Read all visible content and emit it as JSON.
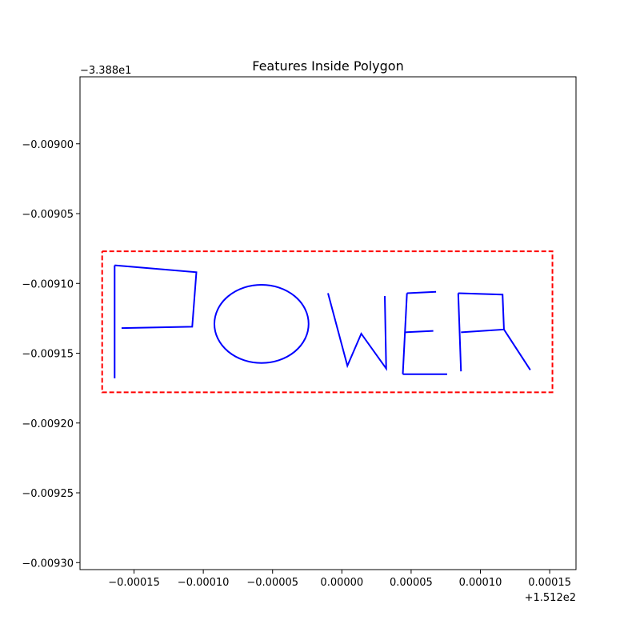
{
  "chart_data": {
    "type": "line",
    "title": "Features Inside Polygon",
    "xlabel": "",
    "ylabel": "",
    "x_offset_label": "+1.512e2",
    "y_offset_label": "−3.388e1",
    "xlim": [
      -0.000189,
      0.000169
    ],
    "ylim": [
      -0.009305,
      -0.008952
    ],
    "x_ticks": [
      {
        "value": -0.00015,
        "label": "−0.00015"
      },
      {
        "value": -0.0001,
        "label": "−0.00010"
      },
      {
        "value": -5e-05,
        "label": "−0.00005"
      },
      {
        "value": 0.0,
        "label": "0.00000"
      },
      {
        "value": 5e-05,
        "label": "0.00005"
      },
      {
        "value": 0.0001,
        "label": "0.00010"
      },
      {
        "value": 0.00015,
        "label": "0.00015"
      }
    ],
    "y_ticks": [
      {
        "value": -0.009,
        "label": "−0.00900"
      },
      {
        "value": -0.00905,
        "label": "−0.00905"
      },
      {
        "value": -0.0091,
        "label": "−0.00910"
      },
      {
        "value": -0.00915,
        "label": "−0.00915"
      },
      {
        "value": -0.0092,
        "label": "−0.00920"
      },
      {
        "value": -0.00925,
        "label": "−0.00925"
      },
      {
        "value": -0.0093,
        "label": "−0.00930"
      }
    ],
    "grid": false,
    "polygon": {
      "name": "boundary",
      "color": "#ff0000",
      "style": "dashed",
      "points": [
        [
          -0.000173,
          -0.009077
        ],
        [
          0.000152,
          -0.009077
        ],
        [
          0.000152,
          -0.009178
        ],
        [
          -0.000173,
          -0.009178
        ],
        [
          -0.000173,
          -0.009077
        ]
      ]
    },
    "feature_color": "#0000ff",
    "features": [
      {
        "name": "P-stem",
        "points": [
          [
            -0.000164,
            -0.009168
          ],
          [
            -0.000164,
            -0.009087
          ]
        ]
      },
      {
        "name": "P-bowl",
        "points": [
          [
            -0.000164,
            -0.009087
          ],
          [
            -0.000105,
            -0.009092
          ],
          [
            -0.000108,
            -0.009131
          ],
          [
            -0.000159,
            -0.009132
          ]
        ]
      },
      {
        "name": "O-circle",
        "type": "circle",
        "center": [
          -5.8e-05,
          -0.009129
        ],
        "radius_x": 3.4e-05,
        "radius_y": 2.8e-05
      },
      {
        "name": "W",
        "points": [
          [
            -1e-05,
            -0.009107
          ],
          [
            4e-06,
            -0.009159
          ],
          [
            1.4e-05,
            -0.009136
          ],
          [
            3.2e-05,
            -0.009161
          ],
          [
            3.1e-05,
            -0.009109
          ]
        ]
      },
      {
        "name": "E-spine",
        "points": [
          [
            4.7e-05,
            -0.009107
          ],
          [
            4.4e-05,
            -0.009165
          ]
        ]
      },
      {
        "name": "E-top",
        "points": [
          [
            4.7e-05,
            -0.009107
          ],
          [
            6.8e-05,
            -0.009106
          ]
        ]
      },
      {
        "name": "E-middle",
        "points": [
          [
            4.6e-05,
            -0.009135
          ],
          [
            6.6e-05,
            -0.009134
          ]
        ]
      },
      {
        "name": "E-bottom",
        "points": [
          [
            4.4e-05,
            -0.009165
          ],
          [
            7.6e-05,
            -0.009165
          ]
        ]
      },
      {
        "name": "R-stem",
        "points": [
          [
            8.6e-05,
            -0.009163
          ],
          [
            8.4e-05,
            -0.009107
          ]
        ]
      },
      {
        "name": "R-bowl",
        "points": [
          [
            8.4e-05,
            -0.009107
          ],
          [
            0.000116,
            -0.009108
          ],
          [
            0.000117,
            -0.009133
          ],
          [
            8.6e-05,
            -0.009135
          ]
        ]
      },
      {
        "name": "R-leg",
        "points": [
          [
            0.000117,
            -0.009133
          ],
          [
            0.000136,
            -0.009162
          ]
        ]
      }
    ]
  }
}
